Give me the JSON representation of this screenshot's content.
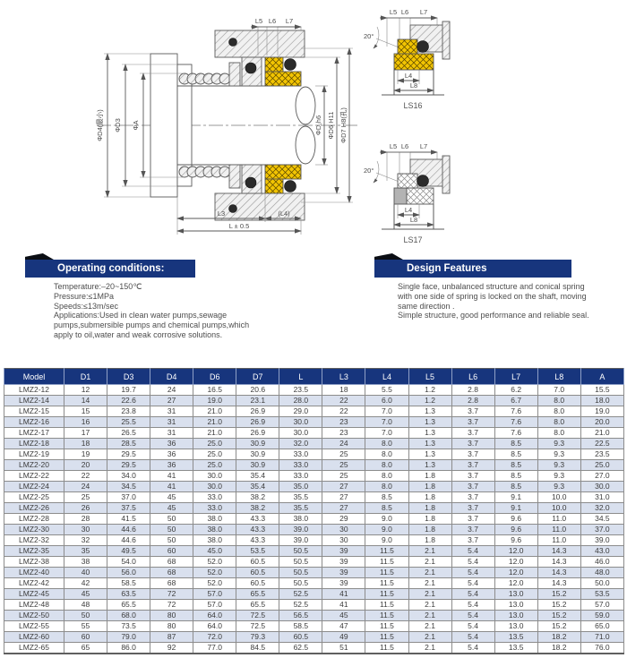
{
  "diagram": {
    "main": {
      "dim_d4": "ΦD4(最小)",
      "dim_d3": "ΦD3",
      "dim_a": "ΦA",
      "dim_d1": "ΦD₁h6",
      "dim_d6": "ΦD6 H11",
      "dim_d7": "ΦD7 H8(孔)",
      "dim_l5": "L5",
      "dim_l6": "L6",
      "dim_l7": "L7",
      "dim_l3": "L3",
      "dim_l4": "(L4)",
      "dim_l": "L ± 0.5"
    },
    "ls16": {
      "caption": "LS16",
      "angle": "20°",
      "l5": "L5",
      "l6": "L6",
      "l7": "L7",
      "l4": "L4",
      "l8": "L8"
    },
    "ls17": {
      "caption": "LS17",
      "angle": "20°",
      "l5": "L5",
      "l6": "L6",
      "l7": "L7",
      "l4": "L4",
      "l8": "L8"
    }
  },
  "sections": {
    "operating": {
      "title": "Operating conditions:",
      "lines": [
        "Temperature:–20~150℃",
        "Pressure:≤1MPa",
        "Speeds:≤13m/sec",
        "Applications:Used in clean water pumps,sewage",
        "pumps,submersible pumps and chemical pumps,which",
        "apply to oil,water and weak corrosive solutions."
      ]
    },
    "design": {
      "title": "Design Features",
      "lines": [
        "Single face, unbalanced structure and conical spring",
        "with one side of spring is locked on the shaft, moving",
        "same direction .",
        "Simple structure, good performance and reliable seal."
      ]
    }
  },
  "table": {
    "headers": [
      "Model",
      "D1",
      "D3",
      "D4",
      "D6",
      "D7",
      "L",
      "L3",
      "L4",
      "L5",
      "L6",
      "L7",
      "L8",
      "A"
    ],
    "rows": [
      [
        "LMZ2-12",
        "12",
        "19.7",
        "24",
        "16.5",
        "20.6",
        "23.5",
        "18",
        "5.5",
        "1.2",
        "2.8",
        "6.2",
        "7.0",
        "15.5"
      ],
      [
        "LMZ2-14",
        "14",
        "22.6",
        "27",
        "19.0",
        "23.1",
        "28.0",
        "22",
        "6.0",
        "1.2",
        "2.8",
        "6.7",
        "8.0",
        "18.0"
      ],
      [
        "LMZ2-15",
        "15",
        "23.8",
        "31",
        "21.0",
        "26.9",
        "29.0",
        "22",
        "7.0",
        "1.3",
        "3.7",
        "7.6",
        "8.0",
        "19.0"
      ],
      [
        "LMZ2-16",
        "16",
        "25.5",
        "31",
        "21.0",
        "26.9",
        "30.0",
        "23",
        "7.0",
        "1.3",
        "3.7",
        "7.6",
        "8.0",
        "20.0"
      ],
      [
        "LMZ2-17",
        "17",
        "26.5",
        "31",
        "21.0",
        "26.9",
        "30.0",
        "23",
        "7.0",
        "1.3",
        "3.7",
        "7.6",
        "8.0",
        "21.0"
      ],
      [
        "LMZ2-18",
        "18",
        "28.5",
        "36",
        "25.0",
        "30.9",
        "32.0",
        "24",
        "8.0",
        "1.3",
        "3.7",
        "8.5",
        "9.3",
        "22.5"
      ],
      [
        "LMZ2-19",
        "19",
        "29.5",
        "36",
        "25.0",
        "30.9",
        "33.0",
        "25",
        "8.0",
        "1.3",
        "3.7",
        "8.5",
        "9.3",
        "23.5"
      ],
      [
        "LMZ2-20",
        "20",
        "29.5",
        "36",
        "25.0",
        "30.9",
        "33.0",
        "25",
        "8.0",
        "1.3",
        "3.7",
        "8.5",
        "9.3",
        "25.0"
      ],
      [
        "LMZ2-22",
        "22",
        "34.0",
        "41",
        "30.0",
        "35.4",
        "33.0",
        "25",
        "8.0",
        "1.8",
        "3.7",
        "8.5",
        "9.3",
        "27.0"
      ],
      [
        "LMZ2-24",
        "24",
        "34.5",
        "41",
        "30.0",
        "35.4",
        "35.0",
        "27",
        "8.0",
        "1.8",
        "3.7",
        "8.5",
        "9.3",
        "30.0"
      ],
      [
        "LMZ2-25",
        "25",
        "37.0",
        "45",
        "33.0",
        "38.2",
        "35.5",
        "27",
        "8.5",
        "1.8",
        "3.7",
        "9.1",
        "10.0",
        "31.0"
      ],
      [
        "LMZ2-26",
        "26",
        "37.5",
        "45",
        "33.0",
        "38.2",
        "35.5",
        "27",
        "8.5",
        "1.8",
        "3.7",
        "9.1",
        "10.0",
        "32.0"
      ],
      [
        "LMZ2-28",
        "28",
        "41.5",
        "50",
        "38.0",
        "43.3",
        "38.0",
        "29",
        "9.0",
        "1.8",
        "3.7",
        "9.6",
        "11.0",
        "34.5"
      ],
      [
        "LMZ2-30",
        "30",
        "44.6",
        "50",
        "38.0",
        "43.3",
        "39.0",
        "30",
        "9.0",
        "1.8",
        "3.7",
        "9.6",
        "11.0",
        "37.0"
      ],
      [
        "LMZ2-32",
        "32",
        "44.6",
        "50",
        "38.0",
        "43.3",
        "39.0",
        "30",
        "9.0",
        "1.8",
        "3.7",
        "9.6",
        "11.0",
        "39.0"
      ],
      [
        "LMZ2-35",
        "35",
        "49.5",
        "60",
        "45.0",
        "53.5",
        "50.5",
        "39",
        "11.5",
        "2.1",
        "5.4",
        "12.0",
        "14.3",
        "43.0"
      ],
      [
        "LMZ2-38",
        "38",
        "54.0",
        "68",
        "52.0",
        "60.5",
        "50.5",
        "39",
        "11.5",
        "2.1",
        "5.4",
        "12.0",
        "14.3",
        "46.0"
      ],
      [
        "LMZ2-40",
        "40",
        "56.0",
        "68",
        "52.0",
        "60.5",
        "50.5",
        "39",
        "11.5",
        "2.1",
        "5.4",
        "12.0",
        "14.3",
        "48.0"
      ],
      [
        "LMZ2-42",
        "42",
        "58.5",
        "68",
        "52.0",
        "60.5",
        "50.5",
        "39",
        "11.5",
        "2.1",
        "5.4",
        "12.0",
        "14.3",
        "50.0"
      ],
      [
        "LMZ2-45",
        "45",
        "63.5",
        "72",
        "57.0",
        "65.5",
        "52.5",
        "41",
        "11.5",
        "2.1",
        "5.4",
        "13.0",
        "15.2",
        "53.5"
      ],
      [
        "LMZ2-48",
        "48",
        "65.5",
        "72",
        "57.0",
        "65.5",
        "52.5",
        "41",
        "11.5",
        "2.1",
        "5.4",
        "13.0",
        "15.2",
        "57.0"
      ],
      [
        "LMZ2-50",
        "50",
        "68.0",
        "80",
        "64.0",
        "72.5",
        "56.5",
        "45",
        "11.5",
        "2.1",
        "5.4",
        "13.0",
        "15.2",
        "59.0"
      ],
      [
        "LMZ2-55",
        "55",
        "73.5",
        "80",
        "64.0",
        "72.5",
        "58.5",
        "47",
        "11.5",
        "2.1",
        "5.4",
        "13.0",
        "15.2",
        "65.0"
      ],
      [
        "LMZ2-60",
        "60",
        "79.0",
        "87",
        "72.0",
        "79.3",
        "60.5",
        "49",
        "11.5",
        "2.1",
        "5.4",
        "13.5",
        "18.2",
        "71.0"
      ],
      [
        "LMZ2-65",
        "65",
        "86.0",
        "92",
        "77.0",
        "84.5",
        "62.5",
        "51",
        "11.5",
        "2.1",
        "5.4",
        "13.5",
        "18.2",
        "76.0"
      ]
    ]
  },
  "colors": {
    "accent_navy": "#17357d",
    "row_alt": "#d9e0ee",
    "seat_yellow": "#f2c402",
    "fold_black": "#0b0e14"
  }
}
